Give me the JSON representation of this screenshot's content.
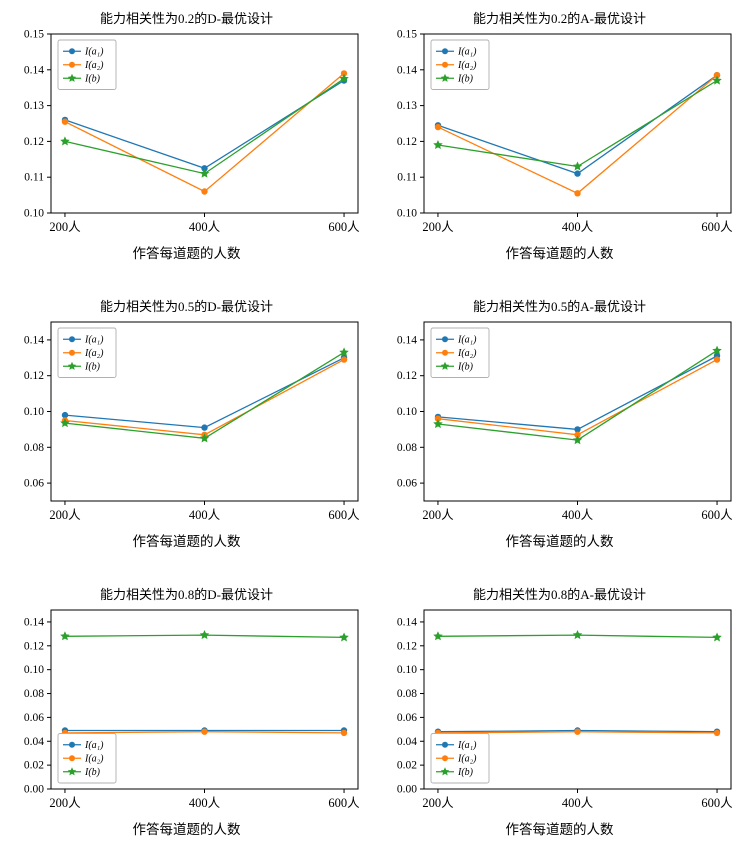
{
  "page": {
    "background": "#ffffff",
    "text_color": "#000000"
  },
  "colors": {
    "series1": "#1f77b4",
    "series2": "#ff7f0e",
    "series3": "#2ca02c",
    "axis": "#000000",
    "legend_border": "#b0b0b0"
  },
  "chart_data": [
    {
      "type": "line",
      "title": "能力相关性为0.2的D-最优设计",
      "xlabel": "作答每道题的人数",
      "categories": [
        "200人",
        "400人",
        "600人"
      ],
      "x": [
        200,
        400,
        600
      ],
      "xlim": [
        180,
        620
      ],
      "ylim": [
        0.1,
        0.15
      ],
      "yticks": [
        0.1,
        0.11,
        0.12,
        0.13,
        0.14,
        0.15
      ],
      "grid": false,
      "legend_position": "upper-left",
      "series": [
        {
          "name": "I(a₁)",
          "color": "#1f77b4",
          "marker": "circle",
          "values": [
            0.126,
            0.1125,
            0.137
          ]
        },
        {
          "name": "I(a₂)",
          "color": "#ff7f0e",
          "marker": "circle",
          "values": [
            0.1255,
            0.106,
            0.139
          ]
        },
        {
          "name": "I(b)",
          "color": "#2ca02c",
          "marker": "star",
          "values": [
            0.12,
            0.111,
            0.1375
          ]
        }
      ]
    },
    {
      "type": "line",
      "title": "能力相关性为0.2的A-最优设计",
      "xlabel": "作答每道题的人数",
      "categories": [
        "200人",
        "400人",
        "600人"
      ],
      "x": [
        200,
        400,
        600
      ],
      "xlim": [
        180,
        620
      ],
      "ylim": [
        0.1,
        0.15
      ],
      "yticks": [
        0.1,
        0.11,
        0.12,
        0.13,
        0.14,
        0.15
      ],
      "grid": false,
      "legend_position": "upper-left",
      "series": [
        {
          "name": "I(a₁)",
          "color": "#1f77b4",
          "marker": "circle",
          "values": [
            0.1245,
            0.111,
            0.1385
          ]
        },
        {
          "name": "I(a₂)",
          "color": "#ff7f0e",
          "marker": "circle",
          "values": [
            0.124,
            0.1055,
            0.1385
          ]
        },
        {
          "name": "I(b)",
          "color": "#2ca02c",
          "marker": "star",
          "values": [
            0.119,
            0.113,
            0.137
          ]
        }
      ]
    },
    {
      "type": "line",
      "title": "能力相关性为0.5的D-最优设计",
      "xlabel": "作答每道题的人数",
      "categories": [
        "200人",
        "400人",
        "600人"
      ],
      "x": [
        200,
        400,
        600
      ],
      "xlim": [
        180,
        620
      ],
      "ylim": [
        0.05,
        0.15
      ],
      "yticks": [
        0.06,
        0.08,
        0.1,
        0.12,
        0.14
      ],
      "grid": false,
      "legend_position": "upper-left",
      "series": [
        {
          "name": "I(a₁)",
          "color": "#1f77b4",
          "marker": "circle",
          "values": [
            0.098,
            0.091,
            0.13
          ]
        },
        {
          "name": "I(a₂)",
          "color": "#ff7f0e",
          "marker": "circle",
          "values": [
            0.095,
            0.087,
            0.129
          ]
        },
        {
          "name": "I(b)",
          "color": "#2ca02c",
          "marker": "star",
          "values": [
            0.0935,
            0.085,
            0.133
          ]
        }
      ]
    },
    {
      "type": "line",
      "title": "能力相关性为0.5的A-最优设计",
      "xlabel": "作答每道题的人数",
      "categories": [
        "200人",
        "400人",
        "600人"
      ],
      "x": [
        200,
        400,
        600
      ],
      "xlim": [
        180,
        620
      ],
      "ylim": [
        0.05,
        0.15
      ],
      "yticks": [
        0.06,
        0.08,
        0.1,
        0.12,
        0.14
      ],
      "grid": false,
      "legend_position": "upper-left",
      "series": [
        {
          "name": "I(a₁)",
          "color": "#1f77b4",
          "marker": "circle",
          "values": [
            0.097,
            0.09,
            0.131
          ]
        },
        {
          "name": "I(a₂)",
          "color": "#ff7f0e",
          "marker": "circle",
          "values": [
            0.096,
            0.087,
            0.129
          ]
        },
        {
          "name": "I(b)",
          "color": "#2ca02c",
          "marker": "star",
          "values": [
            0.093,
            0.084,
            0.134
          ]
        }
      ]
    },
    {
      "type": "line",
      "title": "能力相关性为0.8的D-最优设计",
      "xlabel": "作答每道题的人数",
      "categories": [
        "200人",
        "400人",
        "600人"
      ],
      "x": [
        200,
        400,
        600
      ],
      "xlim": [
        180,
        620
      ],
      "ylim": [
        0.0,
        0.15
      ],
      "yticks": [
        0.0,
        0.02,
        0.04,
        0.06,
        0.08,
        0.1,
        0.12,
        0.14
      ],
      "grid": false,
      "legend_position": "lower-left",
      "series": [
        {
          "name": "I(a₁)",
          "color": "#1f77b4",
          "marker": "circle",
          "values": [
            0.049,
            0.049,
            0.049
          ]
        },
        {
          "name": "I(a₂)",
          "color": "#ff7f0e",
          "marker": "circle",
          "values": [
            0.047,
            0.048,
            0.047
          ]
        },
        {
          "name": "I(b)",
          "color": "#2ca02c",
          "marker": "star",
          "values": [
            0.128,
            0.129,
            0.127
          ]
        }
      ]
    },
    {
      "type": "line",
      "title": "能力相关性为0.8的A-最优设计",
      "xlabel": "作答每道题的人数",
      "categories": [
        "200人",
        "400人",
        "600人"
      ],
      "x": [
        200,
        400,
        600
      ],
      "xlim": [
        180,
        620
      ],
      "ylim": [
        0.0,
        0.15
      ],
      "yticks": [
        0.0,
        0.02,
        0.04,
        0.06,
        0.08,
        0.1,
        0.12,
        0.14
      ],
      "grid": false,
      "legend_position": "lower-left",
      "series": [
        {
          "name": "I(a₁)",
          "color": "#1f77b4",
          "marker": "circle",
          "values": [
            0.048,
            0.049,
            0.048
          ]
        },
        {
          "name": "I(a₂)",
          "color": "#ff7f0e",
          "marker": "circle",
          "values": [
            0.047,
            0.048,
            0.047
          ]
        },
        {
          "name": "I(b)",
          "color": "#2ca02c",
          "marker": "star",
          "values": [
            0.128,
            0.129,
            0.127
          ]
        }
      ]
    }
  ]
}
